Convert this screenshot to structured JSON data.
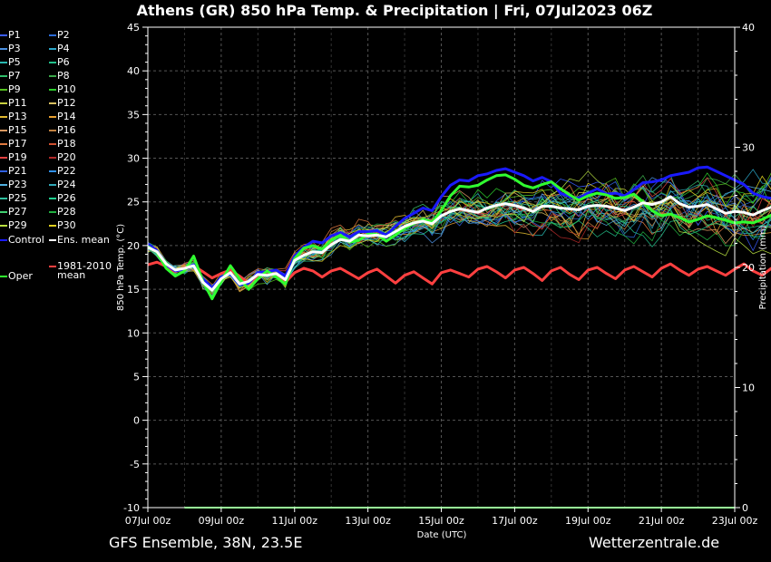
{
  "header": {
    "title": "Athens  (GR)  850 hPa Temp. & Precipitation | Fri, 07Jul2023 06Z"
  },
  "footer": {
    "left": "GFS Ensemble, 38N, 23.5E",
    "right": "Wetterzentrale.de"
  },
  "legend": {
    "items": [
      {
        "label": "P1",
        "color": "#3a5cff"
      },
      {
        "label": "P2",
        "color": "#2b6bd6"
      },
      {
        "label": "P3",
        "color": "#4a8fe0"
      },
      {
        "label": "P4",
        "color": "#2aa6c8"
      },
      {
        "label": "P5",
        "color": "#29b8b0"
      },
      {
        "label": "P6",
        "color": "#22c08a"
      },
      {
        "label": "P7",
        "color": "#2fbe6a"
      },
      {
        "label": "P8",
        "color": "#3aa84a"
      },
      {
        "label": "P9",
        "color": "#55c020"
      },
      {
        "label": "P10",
        "color": "#2ccc2c"
      },
      {
        "label": "P11",
        "color": "#c8d040"
      },
      {
        "label": "P12",
        "color": "#d8c060"
      },
      {
        "label": "P13",
        "color": "#e0b830"
      },
      {
        "label": "P14",
        "color": "#e8a030"
      },
      {
        "label": "P15",
        "color": "#d89860"
      },
      {
        "label": "P16",
        "color": "#c08040"
      },
      {
        "label": "P17",
        "color": "#e07a40"
      },
      {
        "label": "P18",
        "color": "#d05030"
      },
      {
        "label": "P19",
        "color": "#e04040"
      },
      {
        "label": "P20",
        "color": "#b02828"
      },
      {
        "label": "P21",
        "color": "#3060e0"
      },
      {
        "label": "P22",
        "color": "#3090e8"
      },
      {
        "label": "P23",
        "color": "#50b0e0"
      },
      {
        "label": "P24",
        "color": "#30a8b8"
      },
      {
        "label": "P25",
        "color": "#30c0a0"
      },
      {
        "label": "P26",
        "color": "#20d090"
      },
      {
        "label": "P27",
        "color": "#40d070"
      },
      {
        "label": "P28",
        "color": "#20b040"
      },
      {
        "label": "P29",
        "color": "#b8e040"
      },
      {
        "label": "P30",
        "color": "#e0d020"
      },
      {
        "label": "Control",
        "color": "#1a1aff"
      },
      {
        "label": "Ens. mean",
        "color": "#ffffff"
      },
      {
        "label": "Oper",
        "color": "#30ff30"
      },
      {
        "label": "1981-2010",
        "color": "#ff4040"
      }
    ],
    "climate_label_line2": "mean"
  },
  "chart_data": {
    "type": "line",
    "xlabel": "Date (UTC)",
    "ylabel": "850 hPa Temp. (°C)",
    "y2label": "Precipitation (mm)",
    "x_ticks": [
      "07Jul 00z",
      "09Jul 00z",
      "11Jul 00z",
      "13Jul 00z",
      "15Jul 00z",
      "17Jul 00z",
      "19Jul 00z",
      "21Jul 00z",
      "23Jul 00z"
    ],
    "x_tick_hours": [
      0,
      48,
      96,
      144,
      192,
      240,
      288,
      336,
      384
    ],
    "x_range_hours": [
      0,
      384
    ],
    "step_hours": 6,
    "ylim": [
      -10,
      45
    ],
    "y_ticks": [
      -10,
      -5,
      0,
      5,
      10,
      15,
      20,
      25,
      30,
      35,
      40,
      45
    ],
    "y2lim": [
      0,
      40
    ],
    "y2_ticks": [
      0,
      10,
      20,
      30,
      40
    ],
    "grid": true,
    "series": [
      {
        "name": "Ens. mean",
        "color": "#ffffff",
        "start_hour": 0,
        "values": [
          19.8,
          19.3,
          17.9,
          17.2,
          17.4,
          17.7,
          15.8,
          14.9,
          16.2,
          16.9,
          15.6,
          15.9,
          16.7,
          16.6,
          16.8,
          16.1,
          18.3,
          18.9,
          19.3,
          19.2,
          20.1,
          20.7,
          20.5,
          21.2,
          21.1,
          21.2,
          21.0,
          21.6,
          22.2,
          22.6,
          22.8,
          22.5,
          23.4,
          23.9,
          24.2,
          24.0,
          23.8,
          24.3,
          24.6,
          24.8,
          24.6,
          24.3,
          23.9,
          24.5,
          24.5,
          24.3,
          24.2,
          24.1,
          24.5,
          24.6,
          24.5,
          24.3,
          24.0,
          24.4,
          24.9,
          24.7,
          25.0,
          25.6,
          24.8,
          24.4,
          24.5,
          24.7,
          24.2,
          23.7,
          23.9,
          23.8,
          23.5,
          24.0,
          24.4,
          24.2,
          23.7,
          22.5,
          22.3,
          22.6,
          22.1,
          21.2,
          20.6,
          20.6,
          21.0,
          20.9,
          20.2
        ]
      },
      {
        "name": "Control",
        "color": "#1a1aff",
        "start_hour": 0,
        "values": [
          20.2,
          19.4,
          17.8,
          17.1,
          17.3,
          17.8,
          16.2,
          15.1,
          16.4,
          16.8,
          15.5,
          15.7,
          16.9,
          17.0,
          17.2,
          16.5,
          18.8,
          19.8,
          20.5,
          20.3,
          21.1,
          21.5,
          21.0,
          21.6,
          21.6,
          21.7,
          21.2,
          22.2,
          23.1,
          23.7,
          24.3,
          24.0,
          25.6,
          26.9,
          27.5,
          27.4,
          28.0,
          28.2,
          28.6,
          28.8,
          28.4,
          28.0,
          27.4,
          27.8,
          27.3,
          26.0,
          25.6,
          25.4,
          26.0,
          26.5,
          25.9,
          26.0,
          25.7,
          26.4,
          27.2,
          27.3,
          27.5,
          28.0,
          28.2,
          28.4,
          28.9,
          29.0,
          28.5,
          28.0,
          27.5,
          27.0,
          26.0,
          25.6,
          25.4,
          25.6,
          25.2,
          23.5,
          22.5,
          22.5,
          21.9,
          20.5,
          19.8,
          19.5,
          19.8,
          19.6,
          19.3
        ]
      },
      {
        "name": "Oper",
        "color": "#30ff30",
        "start_hour": 0,
        "values": [
          19.9,
          19.2,
          17.4,
          16.5,
          17.1,
          18.8,
          15.9,
          13.9,
          15.9,
          17.7,
          16.2,
          15.0,
          16.2,
          17.1,
          16.4,
          15.6,
          18.5,
          19.7,
          20.0,
          19.6,
          20.6,
          21.2,
          20.4,
          20.6,
          21.3,
          21.3,
          20.5,
          21.2,
          22.0,
          22.5,
          23.0,
          22.7,
          24.0,
          25.7,
          26.8,
          26.7,
          26.9,
          27.5,
          28.0,
          28.1,
          27.6,
          26.9,
          26.6,
          27.0,
          27.3,
          26.5,
          25.8,
          25.2,
          25.7,
          26.0,
          25.8,
          25.4,
          25.5,
          25.9,
          25.0,
          24.0,
          23.4,
          23.6,
          23.2,
          22.7,
          23.0,
          23.4,
          23.2,
          22.9,
          22.6,
          22.7,
          22.6,
          23.0,
          23.5,
          24.2,
          24.7,
          26.2,
          26.7,
          26.0,
          24.4,
          22.8,
          20.8,
          18.9,
          18.7,
          19.5,
          18.8
        ]
      },
      {
        "name": "1981-2010 mean",
        "color": "#ff4040",
        "start_hour": 0,
        "values": [
          17.8,
          18.1,
          17.6,
          17.0,
          17.5,
          17.7,
          17.0,
          16.3,
          16.8,
          17.2,
          16.5,
          15.7,
          16.6,
          17.0,
          16.5,
          15.8,
          16.9,
          17.4,
          17.1,
          16.4,
          17.1,
          17.4,
          16.8,
          16.2,
          16.9,
          17.3,
          16.5,
          15.7,
          16.6,
          17.0,
          16.3,
          15.6,
          16.9,
          17.2,
          16.8,
          16.4,
          17.3,
          17.6,
          17.0,
          16.3,
          17.2,
          17.5,
          16.8,
          16.0,
          17.1,
          17.5,
          16.7,
          16.1,
          17.2,
          17.5,
          16.8,
          16.2,
          17.2,
          17.6,
          17.0,
          16.4,
          17.4,
          17.9,
          17.2,
          16.6,
          17.3,
          17.6,
          17.1,
          16.6,
          17.3,
          17.9,
          17.1,
          16.6,
          17.4,
          18.0,
          17.3,
          16.7,
          17.4,
          17.9,
          17.3,
          16.6,
          17.2,
          17.6,
          16.9,
          16.3,
          16.9
        ]
      },
      {
        "name": "Precipitation",
        "color": "#30ff30",
        "axis": "y2",
        "start_hour": 0,
        "values": [
          0,
          0
        ]
      }
    ]
  }
}
